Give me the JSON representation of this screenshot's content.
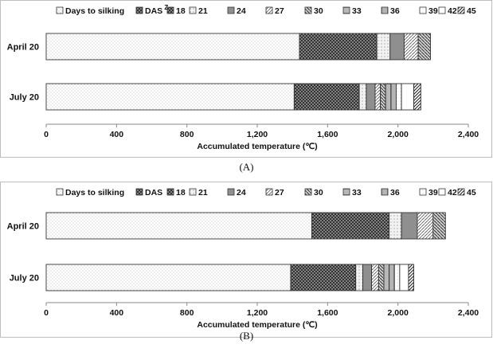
{
  "chart_data": [
    {
      "type": "bar",
      "orientation": "horizontal",
      "stacked": true,
      "panel_label": "(A)",
      "legend_labels": [
        "Days to silking",
        "DAS",
        "18",
        "21",
        "24",
        "27",
        "30",
        "33",
        "36",
        "39",
        "42",
        "45"
      ],
      "legend_superscript": "Z",
      "legend_placement": "top",
      "categories": [
        "April 20",
        "July 20"
      ],
      "series": [
        {
          "name": "Days to silking",
          "values": [
            1440,
            1410
          ]
        },
        {
          "name": "18",
          "values": [
            440,
            370
          ]
        },
        {
          "name": "21",
          "values": [
            75,
            40
          ]
        },
        {
          "name": "24",
          "values": [
            80,
            50
          ]
        },
        {
          "name": "27",
          "values": [
            80,
            30
          ]
        },
        {
          "name": "30",
          "values": [
            70,
            30
          ]
        },
        {
          "name": "33",
          "values": [
            0,
            30
          ]
        },
        {
          "name": "36",
          "values": [
            0,
            30
          ]
        },
        {
          "name": "39",
          "values": [
            0,
            30
          ]
        },
        {
          "name": "42",
          "values": [
            0,
            70
          ]
        },
        {
          "name": "45",
          "values": [
            0,
            40
          ]
        }
      ],
      "series_order_note": "",
      "xlabel": "Accumulated temperature (℃)",
      "ylabel": "",
      "xlim": [
        0,
        2400
      ],
      "xticks": [
        0,
        400,
        800,
        1200,
        1600,
        2000,
        2400
      ],
      "xtick_labels": [
        "0",
        "400",
        "800",
        "1,200",
        "1,600",
        "2,000",
        "2,400"
      ],
      "grid": false
    },
    {
      "type": "bar",
      "orientation": "horizontal",
      "stacked": true,
      "panel_label": "(B)",
      "legend_labels": [
        "Days to silking",
        "DAS",
        "18",
        "21",
        "24",
        "27",
        "30",
        "33",
        "36",
        "39",
        "42",
        "45"
      ],
      "legend_superscript": "",
      "legend_placement": "top",
      "categories": [
        "April 20",
        "July 20"
      ],
      "series": [
        {
          "name": "Days to silking",
          "values": [
            1510,
            1390
          ]
        },
        {
          "name": "18",
          "values": [
            440,
            370
          ]
        },
        {
          "name": "21",
          "values": [
            70,
            40
          ]
        },
        {
          "name": "24",
          "values": [
            90,
            50
          ]
        },
        {
          "name": "27",
          "values": [
            90,
            40
          ]
        },
        {
          "name": "30",
          "values": [
            70,
            30
          ]
        },
        {
          "name": "33",
          "values": [
            0,
            30
          ]
        },
        {
          "name": "36",
          "values": [
            0,
            30
          ]
        },
        {
          "name": "39",
          "values": [
            0,
            30
          ]
        },
        {
          "name": "42",
          "values": [
            0,
            50
          ]
        },
        {
          "name": "45",
          "values": [
            0,
            30
          ]
        }
      ],
      "xlabel": "Accumulated temperature (℃)",
      "ylabel": "",
      "xlim": [
        0,
        2400
      ],
      "xticks": [
        0,
        400,
        800,
        1200,
        1600,
        2000,
        2400
      ],
      "xtick_labels": [
        "0",
        "400",
        "800",
        "1,200",
        "1,600",
        "2,000",
        "2,400"
      ],
      "grid": false
    }
  ],
  "colors": {
    "outline": "#333333",
    "axis": "#888888",
    "text": "#111111",
    "frame": "#bdbdbd"
  }
}
